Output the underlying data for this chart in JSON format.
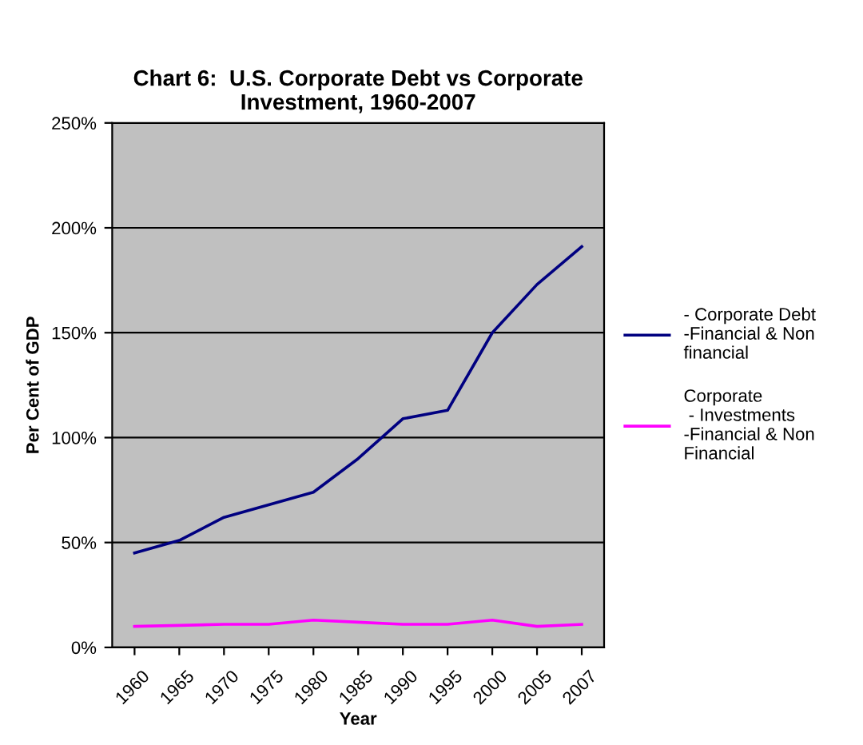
{
  "chart_data": {
    "type": "line",
    "title": "Chart 6:  U.S. Corporate Debt vs Corporate\nInvestment, 1960-2007",
    "xlabel": "Year",
    "ylabel": "Per Cent of GDP",
    "categories": [
      "1960",
      "1965",
      "1970",
      "1975",
      "1980",
      "1985",
      "1990",
      "1995",
      "2000",
      "2005",
      "2007"
    ],
    "series": [
      {
        "name": "- Corporate Debt\n-Financial & Non\nfinancial",
        "color": "#000080",
        "values": [
          45,
          51,
          62,
          68,
          74,
          90,
          109,
          113,
          150,
          173,
          191
        ]
      },
      {
        "name": "Corporate\n - Investments\n-Financial & Non\nFinancial",
        "color": "#ff00ff",
        "values": [
          10,
          10.5,
          11,
          11,
          13,
          12,
          11,
          11,
          13,
          10,
          11
        ]
      }
    ],
    "ylim": [
      0,
      250
    ],
    "yticks": [
      {
        "value": 0,
        "label": "0%"
      },
      {
        "value": 50,
        "label": "50%"
      },
      {
        "value": 100,
        "label": "100%"
      },
      {
        "value": 150,
        "label": "150%"
      },
      {
        "value": 200,
        "label": "200%"
      },
      {
        "value": 250,
        "label": "250%"
      }
    ],
    "grid": "y",
    "legend": "right",
    "marker": "none"
  }
}
